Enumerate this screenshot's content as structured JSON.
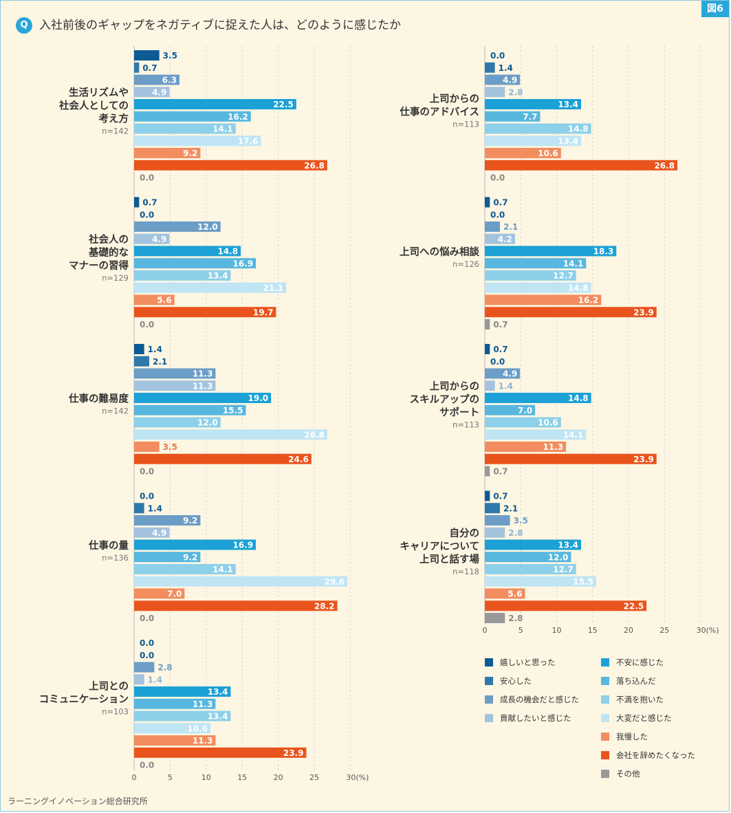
{
  "figure_label": "図6",
  "question_mark": "Q",
  "question": "入社前後のギャップをネガティブに捉えた人は、どのように感じたか",
  "source": "ラーニングイノベーション総合研究所",
  "chart_data": {
    "type": "bar",
    "orientation": "horizontal",
    "title": "入社前後のギャップをネガティブに捉えた人は、どのように感じたか",
    "xlim": [
      0,
      30
    ],
    "xticks": [
      0,
      5,
      10,
      15,
      20,
      25,
      30
    ],
    "xtick_labels": [
      "0",
      "5",
      "10",
      "15",
      "20",
      "25",
      "30(%)"
    ],
    "series": [
      {
        "name": "嬉しいと思った",
        "color": "#0d5a94"
      },
      {
        "name": "安心した",
        "color": "#2f78ab"
      },
      {
        "name": "成長の機会だと感じた",
        "color": "#6c9dc6"
      },
      {
        "name": "貢献したいと感じた",
        "color": "#a3c3df"
      },
      {
        "name": "不安に感じた",
        "color": "#1ba1d6"
      },
      {
        "name": "落ち込んだ",
        "color": "#58b7df"
      },
      {
        "name": "不満を抱いた",
        "color": "#8dd0ea"
      },
      {
        "name": "大変だと感じた",
        "color": "#bfe5f4"
      },
      {
        "name": "我慢した",
        "color": "#f28d5f"
      },
      {
        "name": "会社を辞めたくなった",
        "color": "#e9541d"
      },
      {
        "name": "その他",
        "color": "#999999"
      }
    ],
    "groups": [
      {
        "label": [
          "生活リズムや",
          "社会人としての",
          "考え方"
        ],
        "n": "n=142",
        "values": [
          3.5,
          0.7,
          6.3,
          4.9,
          22.5,
          16.2,
          14.1,
          17.6,
          9.2,
          26.8,
          0.0
        ]
      },
      {
        "label": [
          "社会人の",
          "基礎的な",
          "マナーの習得"
        ],
        "n": "n=129",
        "values": [
          0.7,
          0.0,
          12.0,
          4.9,
          14.8,
          16.9,
          13.4,
          21.1,
          5.6,
          19.7,
          0.0
        ]
      },
      {
        "label": [
          "仕事の難易度"
        ],
        "n": "n=142",
        "values": [
          1.4,
          2.1,
          11.3,
          11.3,
          19.0,
          15.5,
          12.0,
          26.8,
          3.5,
          24.6,
          0.0
        ]
      },
      {
        "label": [
          "仕事の量"
        ],
        "n": "n=136",
        "values": [
          0.0,
          1.4,
          9.2,
          4.9,
          16.9,
          9.2,
          14.1,
          29.6,
          7.0,
          28.2,
          0.0
        ]
      },
      {
        "label": [
          "上司との",
          "コミュニケーション"
        ],
        "n": "n=103",
        "values": [
          0.0,
          0.0,
          2.8,
          1.4,
          13.4,
          11.3,
          13.4,
          10.6,
          11.3,
          23.9,
          0.0
        ]
      },
      {
        "label": [
          "上司からの",
          "仕事のアドバイス"
        ],
        "n": "n=113",
        "values": [
          0.0,
          1.4,
          4.9,
          2.8,
          13.4,
          7.7,
          14.8,
          13.4,
          10.6,
          26.8,
          0.0
        ]
      },
      {
        "label": [
          "上司への悩み相談"
        ],
        "n": "n=126",
        "values": [
          0.7,
          0.0,
          2.1,
          4.2,
          18.3,
          14.1,
          12.7,
          14.8,
          16.2,
          23.9,
          0.7
        ]
      },
      {
        "label": [
          "上司からの",
          "スキルアップの",
          "サポート"
        ],
        "n": "n=113",
        "values": [
          0.7,
          0.0,
          4.9,
          1.4,
          14.8,
          7.0,
          10.6,
          14.1,
          11.3,
          23.9,
          0.7
        ]
      },
      {
        "label": [
          "自分の",
          "キャリアについて",
          "上司と話す場"
        ],
        "n": "n=118",
        "values": [
          0.7,
          2.1,
          3.5,
          2.8,
          13.4,
          12.0,
          12.7,
          15.5,
          5.6,
          22.5,
          2.8
        ]
      }
    ]
  }
}
